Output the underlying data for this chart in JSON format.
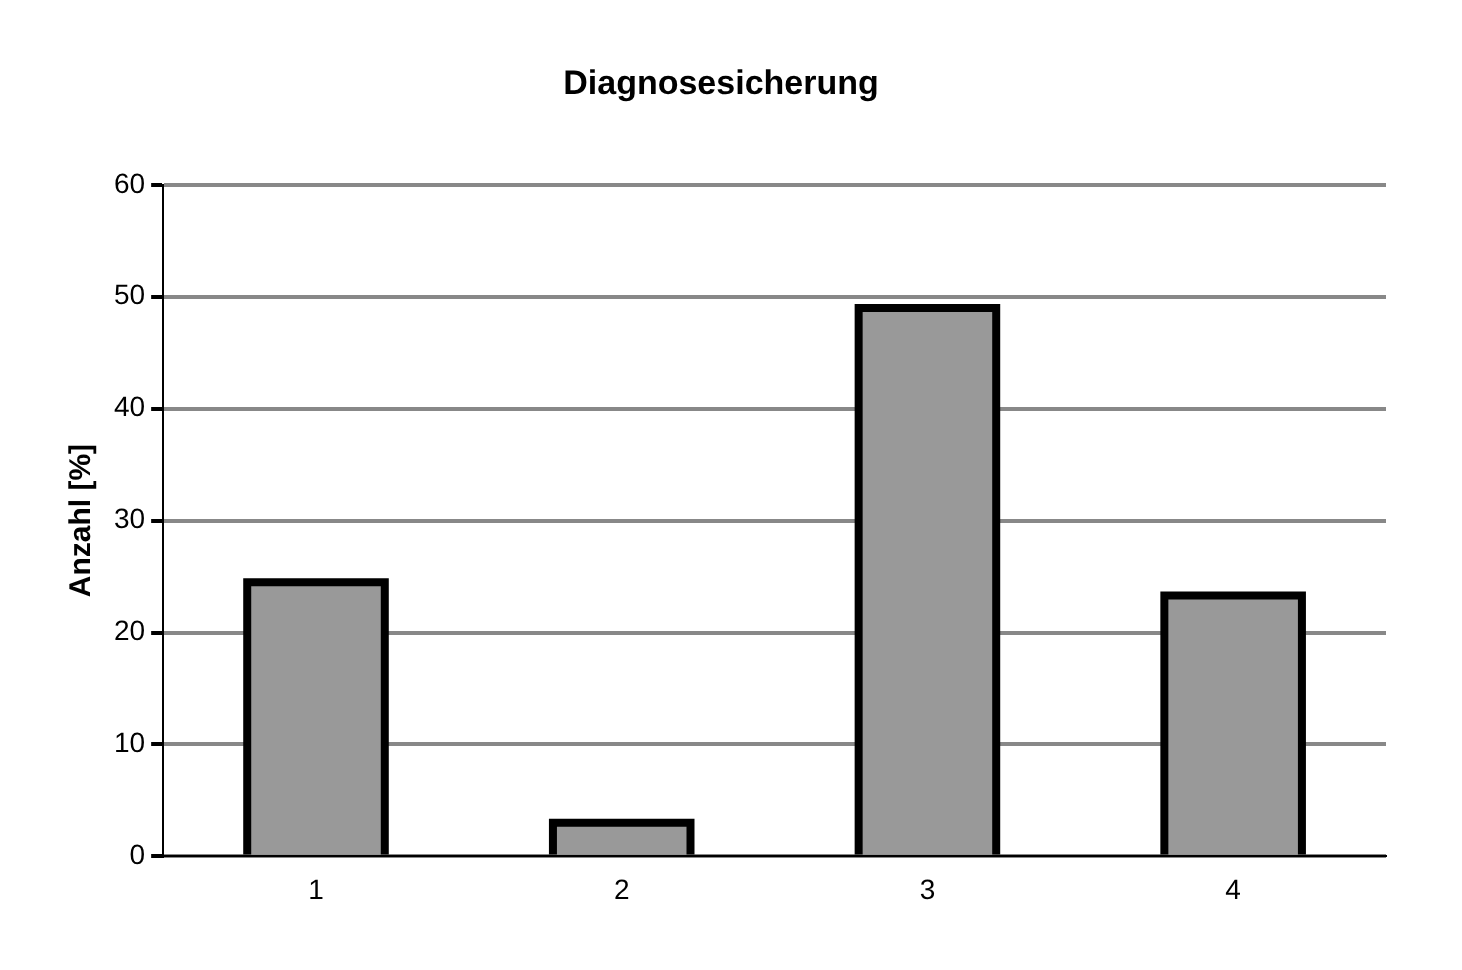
{
  "chart_data": {
    "type": "bar",
    "title": "Diagnosesicherung",
    "ylabel": "Anzahl [%]",
    "categories": [
      "1",
      "2",
      "3",
      "4"
    ],
    "values": [
      24.5,
      3.0,
      49.0,
      23.3
    ],
    "color": "#999999",
    "ylim": [
      0,
      60
    ],
    "yticks": [
      0,
      10,
      20,
      30,
      40,
      50,
      60
    ],
    "grid": "y",
    "legend": false
  }
}
